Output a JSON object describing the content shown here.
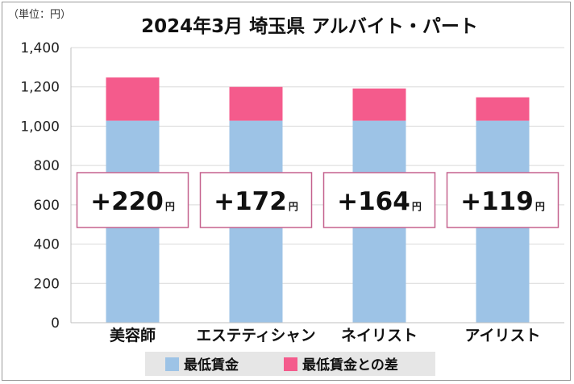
{
  "header": {
    "unit_label": "（単位：円）",
    "title": "2024年3月 埼玉県 アルバイト・パート"
  },
  "legend": {
    "items": [
      {
        "label": "最低賃金",
        "color": "#9dc3e6"
      },
      {
        "label": "最低賃金との差",
        "color": "#f45b8c"
      }
    ]
  },
  "chart_data": {
    "type": "bar",
    "stacked": true,
    "title": "2024年3月 埼玉県 アルバイト・パート",
    "unit": "（単位：円）",
    "categories": [
      "美容師",
      "エステティシャン",
      "ネイリスト",
      "アイリスト"
    ],
    "series": [
      {
        "name": "最低賃金",
        "color": "#9dc3e6",
        "values": [
          1028,
          1028,
          1028,
          1028
        ]
      },
      {
        "name": "最低賃金との差",
        "color": "#f45b8c",
        "values": [
          220,
          172,
          164,
          119
        ]
      }
    ],
    "ylim": [
      0,
      1400
    ],
    "yticks": [
      0,
      200,
      400,
      600,
      800,
      1000,
      1200,
      1400
    ],
    "ytick_labels": [
      "0",
      "200",
      "400",
      "600",
      "800",
      "1,000",
      "1,200",
      "1,400"
    ],
    "grid": true,
    "legend_position": "bottom",
    "annotations": [
      {
        "category": "美容師",
        "text": "+220",
        "unit": "円"
      },
      {
        "category": "エステティシャン",
        "text": "+172",
        "unit": "円"
      },
      {
        "category": "ネイリスト",
        "text": "+164",
        "unit": "円"
      },
      {
        "category": "アイリスト",
        "text": "+119",
        "unit": "円"
      }
    ],
    "colors": {
      "grid": "#d9d9d9",
      "annotation_border": "#c5628e"
    }
  }
}
